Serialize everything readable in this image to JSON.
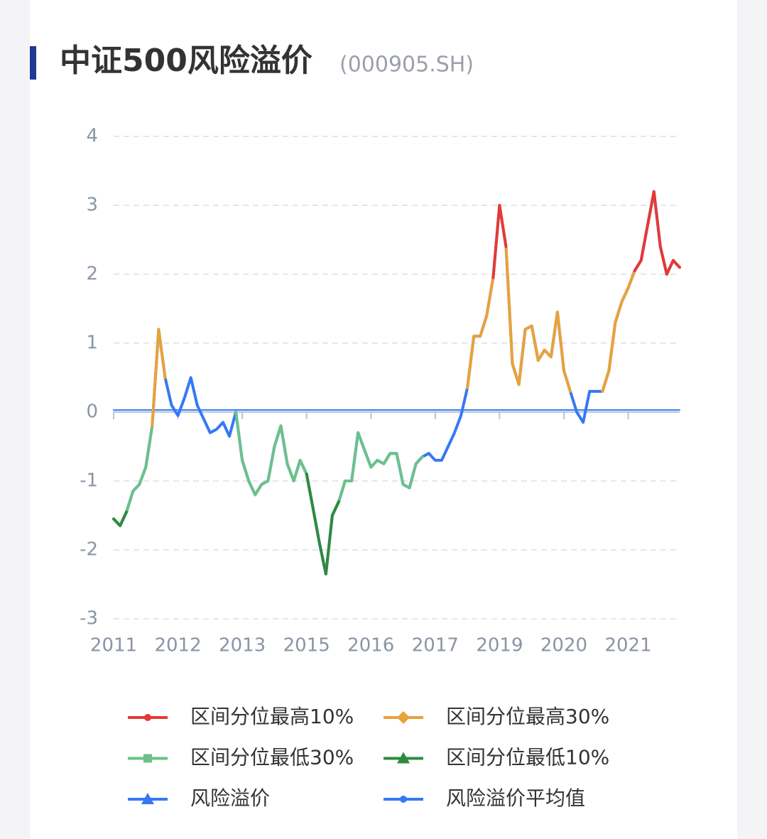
{
  "chart_data": {
    "type": "line",
    "title": "中证500风险溢价",
    "subtitle": "(000905.SH)",
    "categories": [
      "2011",
      null,
      null,
      null,
      null,
      null,
      null,
      null,
      null,
      null,
      "2012",
      null,
      null,
      null,
      null,
      null,
      null,
      null,
      null,
      null,
      "2013",
      null,
      null,
      null,
      null,
      null,
      null,
      null,
      null,
      null,
      "2015",
      null,
      null,
      null,
      null,
      null,
      null,
      null,
      null,
      null,
      "2016",
      null,
      null,
      null,
      null,
      null,
      null,
      null,
      null,
      null,
      "2017",
      null,
      null,
      null,
      null,
      null,
      null,
      null,
      null,
      null,
      "2019",
      null,
      null,
      null,
      null,
      null,
      null,
      null,
      null,
      null,
      "2020",
      null,
      null,
      null,
      null,
      null,
      null,
      null,
      null,
      null,
      "2021",
      null,
      null,
      null,
      null,
      null,
      null,
      null,
      null
    ],
    "ylim": [
      -3,
      4
    ],
    "yticks": [
      -3,
      -2,
      -1,
      0,
      1,
      2,
      3,
      4
    ],
    "grid": true,
    "series": [
      {
        "name": "风险溢价",
        "color": "#3478f6",
        "marker": "triangle",
        "values": [
          -1.55,
          -1.65,
          -1.45,
          -1.15,
          -1.05,
          -0.8,
          -0.2,
          1.2,
          0.5,
          0.1,
          -0.05,
          0.2,
          0.5,
          0.1,
          -0.1,
          -0.3,
          -0.25,
          -0.15,
          -0.35,
          0.0,
          -0.7,
          -1.0,
          -1.2,
          -1.05,
          -1.0,
          -0.5,
          -0.2,
          -0.75,
          -1.0,
          -0.7,
          -0.9,
          -1.4,
          -1.9,
          -2.35,
          -1.5,
          -1.3,
          -1.0,
          -1.0,
          -0.3,
          -0.55,
          -0.8,
          -0.7,
          -0.75,
          -0.6,
          -0.6,
          -1.05,
          -1.1,
          -0.75,
          -0.65,
          -0.6,
          -0.7,
          -0.7,
          -0.5,
          -0.3,
          -0.05,
          0.35,
          1.1,
          1.1,
          1.4,
          1.95,
          3.0,
          2.4,
          0.7,
          0.4,
          1.2,
          1.25,
          0.75,
          0.9,
          0.8,
          1.45,
          0.6,
          0.3,
          0.0,
          -0.15,
          0.3,
          0.3,
          0.3,
          0.6,
          1.3,
          1.6,
          1.8,
          2.05,
          2.2,
          2.7,
          3.2,
          2.4,
          2.0,
          2.2,
          2.1
        ]
      },
      {
        "name": "区间分位最高10%",
        "color": "#e53935",
        "marker": "circle",
        "values": [
          null,
          null,
          null,
          null,
          null,
          null,
          null,
          null,
          null,
          null,
          null,
          null,
          null,
          null,
          null,
          null,
          null,
          null,
          null,
          null,
          null,
          null,
          null,
          null,
          null,
          null,
          null,
          null,
          null,
          null,
          null,
          null,
          null,
          null,
          null,
          null,
          null,
          null,
          null,
          null,
          null,
          null,
          null,
          null,
          null,
          null,
          null,
          null,
          null,
          null,
          null,
          null,
          null,
          null,
          null,
          null,
          null,
          null,
          null,
          1.95,
          3.0,
          2.4,
          null,
          null,
          null,
          null,
          null,
          null,
          null,
          null,
          null,
          null,
          null,
          null,
          null,
          null,
          null,
          null,
          null,
          null,
          null,
          2.05,
          2.2,
          2.7,
          3.2,
          2.4,
          2.0,
          2.2,
          2.1
        ]
      },
      {
        "name": "区间分位最高30%",
        "color": "#e8a23a",
        "marker": "diamond",
        "values": [
          null,
          null,
          null,
          null,
          null,
          null,
          -0.2,
          1.2,
          0.5,
          null,
          null,
          null,
          null,
          null,
          null,
          null,
          null,
          null,
          null,
          null,
          null,
          null,
          null,
          null,
          null,
          null,
          null,
          null,
          null,
          null,
          null,
          null,
          null,
          null,
          null,
          null,
          null,
          null,
          null,
          null,
          null,
          null,
          null,
          null,
          null,
          null,
          null,
          null,
          null,
          null,
          null,
          null,
          null,
          null,
          null,
          0.35,
          1.1,
          1.1,
          1.4,
          1.95,
          null,
          2.4,
          0.7,
          0.4,
          1.2,
          1.25,
          0.75,
          0.9,
          0.8,
          1.45,
          0.6,
          0.3,
          null,
          null,
          null,
          null,
          0.3,
          0.6,
          1.3,
          1.6,
          1.8,
          2.05,
          null,
          null,
          null,
          null,
          null,
          null,
          null
        ]
      },
      {
        "name": "区间分位最低30%",
        "color": "#6cc18a",
        "marker": "square",
        "values": [
          null,
          null,
          -1.45,
          -1.15,
          -1.05,
          -0.8,
          -0.2,
          null,
          null,
          null,
          null,
          null,
          null,
          null,
          null,
          null,
          null,
          null,
          null,
          0.0,
          -0.7,
          -1.0,
          -1.2,
          -1.05,
          -1.0,
          -0.5,
          -0.2,
          -0.75,
          -1.0,
          -0.7,
          -0.9,
          -1.4,
          null,
          null,
          -1.5,
          -1.3,
          -1.0,
          -1.0,
          -0.3,
          -0.55,
          -0.8,
          -0.7,
          -0.75,
          -0.6,
          -0.6,
          -1.05,
          -1.1,
          -0.75,
          -0.65,
          null,
          null,
          null,
          null,
          null,
          null,
          null,
          null,
          null,
          null,
          null,
          null,
          null,
          null,
          null,
          null,
          null,
          null,
          null,
          null,
          null,
          null,
          null,
          null,
          null,
          null,
          null,
          null,
          null,
          null,
          null,
          null,
          null,
          null,
          null,
          null,
          null,
          null,
          null,
          null
        ]
      },
      {
        "name": "区间分位最低10%",
        "color": "#2e8b3e",
        "marker": "triangle",
        "values": [
          -1.55,
          -1.65,
          -1.45,
          null,
          null,
          null,
          null,
          null,
          null,
          null,
          null,
          null,
          null,
          null,
          null,
          null,
          null,
          null,
          null,
          null,
          null,
          null,
          null,
          null,
          null,
          null,
          null,
          null,
          null,
          null,
          -0.9,
          -1.4,
          -1.9,
          -2.35,
          -1.5,
          -1.3,
          null,
          null,
          null,
          null,
          null,
          null,
          null,
          null,
          null,
          null,
          null,
          null,
          null,
          null,
          null,
          null,
          null,
          null,
          null,
          null,
          null,
          null,
          null,
          null,
          null,
          null,
          null,
          null,
          null,
          null,
          null,
          null,
          null,
          null,
          null,
          null,
          null,
          null,
          null,
          null,
          null,
          null,
          null,
          null,
          null,
          null,
          null,
          null,
          null,
          null,
          null,
          null,
          null
        ]
      },
      {
        "name": "风险溢价平均值",
        "color": "#3478f6",
        "marker": "circle",
        "values": [
          0.03,
          0.03,
          0.03,
          0.03,
          0.03,
          0.03,
          0.03,
          0.03,
          0.03,
          0.03,
          0.03,
          0.03,
          0.03,
          0.03,
          0.03,
          0.03,
          0.03,
          0.03,
          0.03,
          0.03,
          0.03,
          0.03,
          0.03,
          0.03,
          0.03,
          0.03,
          0.03,
          0.03,
          0.03,
          0.03,
          0.03,
          0.03,
          0.03,
          0.03,
          0.03,
          0.03,
          0.03,
          0.03,
          0.03,
          0.03,
          0.03,
          0.03,
          0.03,
          0.03,
          0.03,
          0.03,
          0.03,
          0.03,
          0.03,
          0.03,
          0.03,
          0.03,
          0.03,
          0.03,
          0.03,
          0.03,
          0.03,
          0.03,
          0.03,
          0.03,
          0.03,
          0.03,
          0.03,
          0.03,
          0.03,
          0.03,
          0.03,
          0.03,
          0.03,
          0.03,
          0.03,
          0.03,
          0.03,
          0.03,
          0.03,
          0.03,
          0.03,
          0.03,
          0.03,
          0.03,
          0.03,
          0.03,
          0.03,
          0.03,
          0.03,
          0.03,
          0.03,
          0.03,
          0.03
        ]
      }
    ],
    "legend_order": [
      1,
      2,
      3,
      4,
      0,
      5
    ]
  }
}
